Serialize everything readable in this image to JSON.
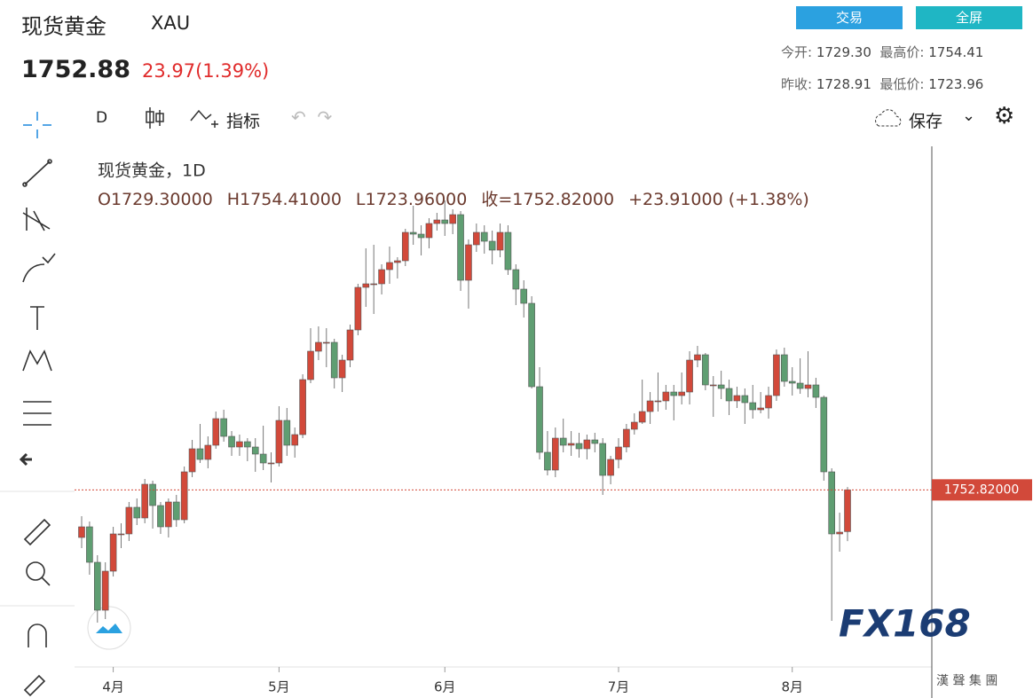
{
  "header": {
    "name": "现货黄金",
    "symbol": "XAU",
    "price": "1752.88",
    "change": "23.97(1.39%)",
    "buttons": [
      "交易",
      "全屏"
    ],
    "stats": [
      {
        "label": "今开:",
        "value": "1729.30"
      },
      {
        "label": "最高价:",
        "value": "1754.41"
      },
      {
        "label": "昨收:",
        "value": "1728.91"
      },
      {
        "label": "最低价:",
        "value": "1723.96"
      }
    ]
  },
  "toolbar": {
    "interval": "D",
    "indicators": "指标",
    "save": "保存"
  },
  "chart_data": {
    "type": "candlestick",
    "title": "现货黄金，1D",
    "legend": [
      "O1729.30000",
      "H1754.41000",
      "L1723.96000",
      "收=1752.82000",
      "+23.91000 (+1.38%)"
    ],
    "up_color": "#d2493a",
    "down_color": "#5f9e72",
    "ylim": [
      1660,
      1925
    ],
    "xlim": [
      0,
      97
    ],
    "xticks": [
      {
        "value": 4,
        "label": "4月"
      },
      {
        "value": 25,
        "label": "5月"
      },
      {
        "value": 46,
        "label": "6月"
      },
      {
        "value": 68,
        "label": "7月"
      },
      {
        "value": 90,
        "label": "8月"
      }
    ],
    "last_price": {
      "value": 1752.82,
      "label": "1752.82000"
    },
    "candles": [
      [
        1726,
        1738,
        1720,
        1732
      ],
      [
        1732,
        1735,
        1705,
        1712
      ],
      [
        1712,
        1716,
        1678,
        1685
      ],
      [
        1685,
        1712,
        1680,
        1707
      ],
      [
        1707,
        1732,
        1704,
        1728
      ],
      [
        1728,
        1734,
        1720,
        1728
      ],
      [
        1728,
        1746,
        1724,
        1743
      ],
      [
        1743,
        1748,
        1733,
        1737
      ],
      [
        1737,
        1759,
        1734,
        1756
      ],
      [
        1756,
        1758,
        1731,
        1744
      ],
      [
        1744,
        1746,
        1728,
        1732
      ],
      [
        1732,
        1748,
        1726,
        1746
      ],
      [
        1746,
        1750,
        1732,
        1736
      ],
      [
        1736,
        1766,
        1734,
        1763
      ],
      [
        1763,
        1781,
        1760,
        1776
      ],
      [
        1776,
        1790,
        1768,
        1770
      ],
      [
        1770,
        1783,
        1765,
        1778
      ],
      [
        1778,
        1797,
        1776,
        1793
      ],
      [
        1793,
        1798,
        1780,
        1783
      ],
      [
        1783,
        1786,
        1772,
        1777
      ],
      [
        1777,
        1784,
        1772,
        1780
      ],
      [
        1780,
        1782,
        1769,
        1777
      ],
      [
        1777,
        1782,
        1763,
        1773
      ],
      [
        1773,
        1789,
        1764,
        1768
      ],
      [
        1768,
        1774,
        1757,
        1768
      ],
      [
        1768,
        1800,
        1766,
        1792
      ],
      [
        1792,
        1799,
        1772,
        1778
      ],
      [
        1778,
        1788,
        1771,
        1784
      ],
      [
        1784,
        1818,
        1782,
        1815
      ],
      [
        1815,
        1844,
        1813,
        1831
      ],
      [
        1831,
        1845,
        1826,
        1836
      ],
      [
        1836,
        1844,
        1822,
        1836
      ],
      [
        1836,
        1838,
        1810,
        1816
      ],
      [
        1816,
        1829,
        1808,
        1826
      ],
      [
        1826,
        1846,
        1822,
        1843
      ],
      [
        1843,
        1869,
        1840,
        1867
      ],
      [
        1867,
        1889,
        1856,
        1869
      ],
      [
        1869,
        1891,
        1852,
        1869
      ],
      [
        1869,
        1880,
        1863,
        1877
      ],
      [
        1877,
        1890,
        1869,
        1881
      ],
      [
        1881,
        1884,
        1872,
        1882
      ],
      [
        1882,
        1900,
        1879,
        1898
      ],
      [
        1898,
        1913,
        1891,
        1897
      ],
      [
        1897,
        1902,
        1885,
        1895
      ],
      [
        1895,
        1906,
        1889,
        1903
      ],
      [
        1903,
        1909,
        1899,
        1905
      ],
      [
        1905,
        1916,
        1896,
        1903
      ],
      [
        1903,
        1911,
        1897,
        1908
      ],
      [
        1908,
        1910,
        1865,
        1871
      ],
      [
        1871,
        1894,
        1855,
        1891
      ],
      [
        1891,
        1903,
        1887,
        1898
      ],
      [
        1898,
        1902,
        1886,
        1893
      ],
      [
        1893,
        1899,
        1880,
        1888
      ],
      [
        1888,
        1903,
        1884,
        1898
      ],
      [
        1898,
        1902,
        1874,
        1877
      ],
      [
        1877,
        1880,
        1857,
        1866
      ],
      [
        1866,
        1871,
        1850,
        1858
      ],
      [
        1858,
        1862,
        1810,
        1811
      ],
      [
        1811,
        1822,
        1770,
        1774
      ],
      [
        1774,
        1786,
        1761,
        1764
      ],
      [
        1764,
        1788,
        1760,
        1782
      ],
      [
        1782,
        1793,
        1774,
        1778
      ],
      [
        1778,
        1786,
        1772,
        1779
      ],
      [
        1779,
        1785,
        1771,
        1776
      ],
      [
        1776,
        1784,
        1770,
        1781
      ],
      [
        1781,
        1785,
        1774,
        1779
      ],
      [
        1779,
        1782,
        1750,
        1761
      ],
      [
        1761,
        1772,
        1756,
        1770
      ],
      [
        1770,
        1782,
        1765,
        1777
      ],
      [
        1777,
        1790,
        1774,
        1787
      ],
      [
        1787,
        1796,
        1784,
        1791
      ],
      [
        1791,
        1815,
        1790,
        1797
      ],
      [
        1797,
        1808,
        1790,
        1803
      ],
      [
        1803,
        1819,
        1797,
        1803
      ],
      [
        1803,
        1812,
        1798,
        1808
      ],
      [
        1808,
        1812,
        1792,
        1806
      ],
      [
        1806,
        1819,
        1801,
        1808
      ],
      [
        1808,
        1831,
        1801,
        1826
      ],
      [
        1826,
        1834,
        1822,
        1829
      ],
      [
        1829,
        1830,
        1809,
        1812
      ],
      [
        1812,
        1817,
        1794,
        1812
      ],
      [
        1812,
        1820,
        1804,
        1810
      ],
      [
        1810,
        1815,
        1795,
        1803
      ],
      [
        1803,
        1811,
        1799,
        1806
      ],
      [
        1806,
        1810,
        1790,
        1802
      ],
      [
        1802,
        1812,
        1793,
        1798
      ],
      [
        1798,
        1808,
        1796,
        1799
      ],
      [
        1799,
        1811,
        1793,
        1806
      ],
      [
        1806,
        1832,
        1803,
        1829
      ],
      [
        1829,
        1833,
        1811,
        1814
      ],
      [
        1814,
        1822,
        1806,
        1813
      ],
      [
        1813,
        1827,
        1807,
        1810
      ],
      [
        1810,
        1831,
        1805,
        1812
      ],
      [
        1812,
        1816,
        1799,
        1805
      ],
      [
        1805,
        1806,
        1758,
        1763
      ],
      [
        1763,
        1765,
        1679,
        1728
      ],
      [
        1728,
        1740,
        1718,
        1729
      ],
      [
        1729.3,
        1754.41,
        1723.96,
        1752.82
      ]
    ]
  }
}
